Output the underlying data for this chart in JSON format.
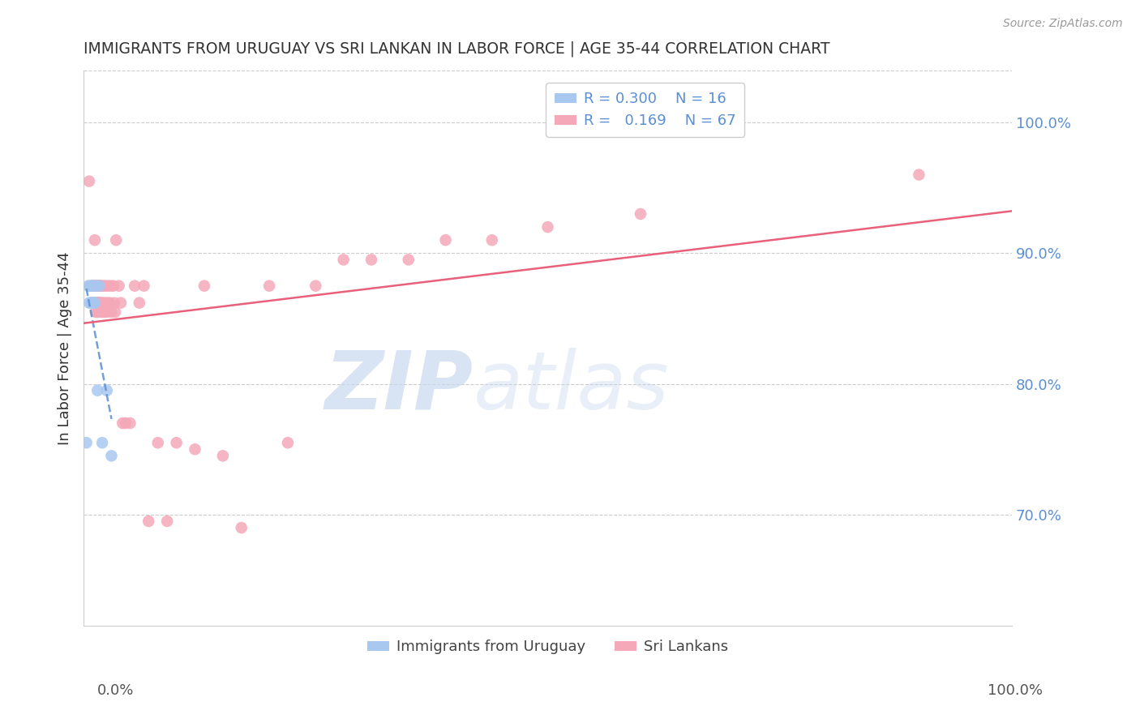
{
  "title": "IMMIGRANTS FROM URUGUAY VS SRI LANKAN IN LABOR FORCE | AGE 35-44 CORRELATION CHART",
  "source": "Source: ZipAtlas.com",
  "ylabel": "In Labor Force | Age 35-44",
  "right_yticks": [
    "100.0%",
    "90.0%",
    "80.0%",
    "70.0%"
  ],
  "right_ytick_vals": [
    1.0,
    0.9,
    0.8,
    0.7
  ],
  "xlim": [
    0.0,
    1.0
  ],
  "ylim": [
    0.615,
    1.04
  ],
  "uruguay_R": 0.3,
  "uruguay_N": 16,
  "srilanka_R": 0.169,
  "srilanka_N": 67,
  "uruguay_color": "#a8c8f0",
  "srilanka_color": "#f4a8b8",
  "uruguay_line_color": "#5b8fd4",
  "srilanka_line_color": "#e8607a",
  "uruguay_x": [
    0.003,
    0.005,
    0.006,
    0.007,
    0.008,
    0.009,
    0.009,
    0.01,
    0.011,
    0.012,
    0.013,
    0.015,
    0.017,
    0.02,
    0.025,
    0.03
  ],
  "uruguay_y": [
    0.755,
    0.875,
    0.862,
    0.875,
    0.862,
    0.875,
    0.862,
    0.875,
    0.862,
    0.862,
    0.875,
    0.795,
    0.875,
    0.755,
    0.795,
    0.745
  ],
  "srilanka_x": [
    0.006,
    0.009,
    0.009,
    0.01,
    0.01,
    0.011,
    0.011,
    0.012,
    0.012,
    0.013,
    0.013,
    0.013,
    0.014,
    0.014,
    0.015,
    0.015,
    0.015,
    0.016,
    0.016,
    0.017,
    0.017,
    0.018,
    0.018,
    0.019,
    0.019,
    0.02,
    0.021,
    0.022,
    0.022,
    0.023,
    0.025,
    0.025,
    0.026,
    0.028,
    0.029,
    0.03,
    0.032,
    0.033,
    0.034,
    0.035,
    0.038,
    0.04,
    0.042,
    0.045,
    0.05,
    0.055,
    0.06,
    0.065,
    0.07,
    0.08,
    0.09,
    0.1,
    0.12,
    0.13,
    0.15,
    0.17,
    0.2,
    0.22,
    0.25,
    0.28,
    0.31,
    0.35,
    0.39,
    0.44,
    0.5,
    0.6,
    0.9
  ],
  "srilanka_y": [
    0.955,
    0.875,
    0.862,
    0.875,
    0.862,
    0.875,
    0.862,
    0.91,
    0.875,
    0.875,
    0.862,
    0.855,
    0.875,
    0.862,
    0.875,
    0.862,
    0.855,
    0.875,
    0.862,
    0.875,
    0.862,
    0.875,
    0.862,
    0.875,
    0.855,
    0.862,
    0.875,
    0.862,
    0.855,
    0.875,
    0.862,
    0.855,
    0.875,
    0.862,
    0.875,
    0.855,
    0.875,
    0.862,
    0.855,
    0.91,
    0.875,
    0.862,
    0.77,
    0.77,
    0.77,
    0.875,
    0.862,
    0.875,
    0.695,
    0.755,
    0.695,
    0.755,
    0.75,
    0.875,
    0.745,
    0.69,
    0.875,
    0.755,
    0.875,
    0.895,
    0.895,
    0.895,
    0.91,
    0.91,
    0.92,
    0.93,
    0.96
  ],
  "grid_color": "#cccccc",
  "background_color": "#ffffff",
  "title_color": "#333333",
  "source_color": "#999999",
  "right_tick_color": "#5b8fd4",
  "legend_color_uruguay": "#a8c8f0",
  "legend_color_srilanka": "#f4a8b8",
  "watermark_zip": "ZIP",
  "watermark_atlas": "atlas",
  "watermark_color_zip": "#c8d8ee",
  "watermark_color_atlas": "#c8d8ee"
}
